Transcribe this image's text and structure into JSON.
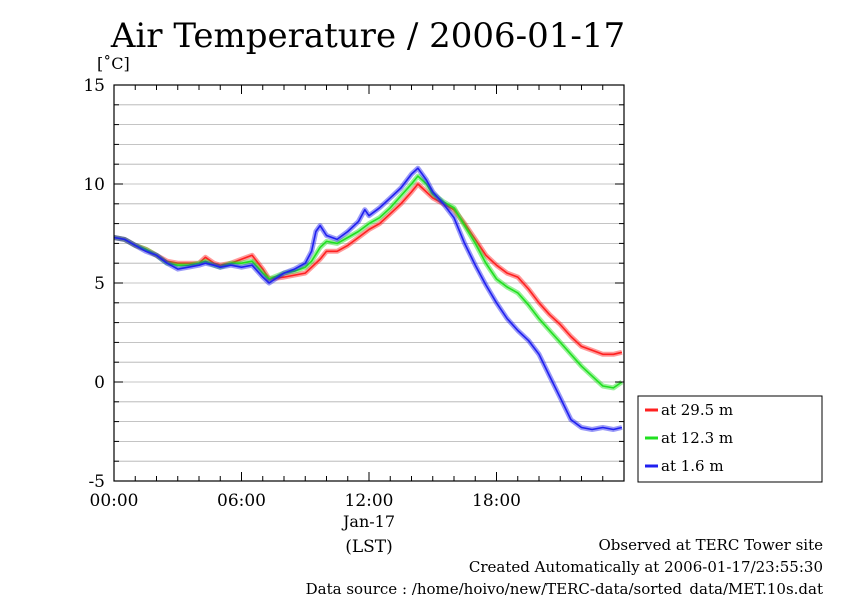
{
  "chart_data": {
    "type": "line",
    "title": "Air Temperature / 2006-01-17",
    "ylabel": "[˚C]",
    "xlabel": "(LST)",
    "date_label": "Jan-17",
    "ylim": [
      -5,
      15
    ],
    "xlim": [
      0,
      23.9
    ],
    "x_unit": "hour of day (LST)",
    "yticks": [
      {
        "value": 15,
        "label": "15"
      },
      {
        "value": 10,
        "label": "10"
      },
      {
        "value": 5,
        "label": "5"
      },
      {
        "value": 0,
        "label": "0"
      },
      {
        "value": -5,
        "label": "-5"
      }
    ],
    "xticks": [
      {
        "value": 0,
        "label": "00:00"
      },
      {
        "value": 6,
        "label": "06:00"
      },
      {
        "value": 12,
        "label": "12:00"
      },
      {
        "value": 18,
        "label": "18:00"
      }
    ],
    "grid": true,
    "legend_position": "right",
    "series": [
      {
        "name": "at 29.5 m",
        "color": "#ff2020",
        "points": [
          [
            0,
            7.3
          ],
          [
            0.5,
            7.2
          ],
          [
            1,
            6.9
          ],
          [
            1.5,
            6.7
          ],
          [
            2,
            6.4
          ],
          [
            2.5,
            6.1
          ],
          [
            3,
            6.0
          ],
          [
            3.5,
            6.0
          ],
          [
            4,
            6.0
          ],
          [
            4.3,
            6.3
          ],
          [
            4.7,
            6.0
          ],
          [
            5,
            5.9
          ],
          [
            5.5,
            6.0
          ],
          [
            6,
            6.2
          ],
          [
            6.5,
            6.4
          ],
          [
            7,
            5.7
          ],
          [
            7.3,
            5.2
          ],
          [
            8,
            5.3
          ],
          [
            8.5,
            5.4
          ],
          [
            9,
            5.5
          ],
          [
            9.3,
            5.8
          ],
          [
            9.7,
            6.2
          ],
          [
            10,
            6.6
          ],
          [
            10.5,
            6.6
          ],
          [
            11,
            6.9
          ],
          [
            11.5,
            7.3
          ],
          [
            12,
            7.7
          ],
          [
            12.5,
            8.0
          ],
          [
            13,
            8.5
          ],
          [
            13.5,
            9.0
          ],
          [
            14,
            9.6
          ],
          [
            14.3,
            10.0
          ],
          [
            14.7,
            9.6
          ],
          [
            15,
            9.3
          ],
          [
            15.5,
            9.0
          ],
          [
            16,
            8.7
          ],
          [
            16.5,
            8.0
          ],
          [
            17,
            7.2
          ],
          [
            17.5,
            6.4
          ],
          [
            18,
            5.9
          ],
          [
            18.5,
            5.5
          ],
          [
            19,
            5.3
          ],
          [
            19.5,
            4.7
          ],
          [
            20,
            4.0
          ],
          [
            20.5,
            3.4
          ],
          [
            21,
            2.9
          ],
          [
            21.5,
            2.3
          ],
          [
            22,
            1.8
          ],
          [
            22.5,
            1.6
          ],
          [
            23,
            1.4
          ],
          [
            23.5,
            1.4
          ],
          [
            23.9,
            1.5
          ]
        ]
      },
      {
        "name": "at 12.3 m",
        "color": "#20e020",
        "points": [
          [
            0,
            7.3
          ],
          [
            0.5,
            7.2
          ],
          [
            1,
            6.9
          ],
          [
            1.5,
            6.7
          ],
          [
            2,
            6.4
          ],
          [
            2.5,
            6.0
          ],
          [
            3,
            5.9
          ],
          [
            3.5,
            5.9
          ],
          [
            4,
            6.0
          ],
          [
            4.3,
            6.1
          ],
          [
            4.7,
            5.9
          ],
          [
            5,
            5.8
          ],
          [
            5.5,
            6.0
          ],
          [
            6,
            6.0
          ],
          [
            6.5,
            6.1
          ],
          [
            7,
            5.5
          ],
          [
            7.3,
            5.2
          ],
          [
            8,
            5.5
          ],
          [
            8.5,
            5.6
          ],
          [
            9,
            5.8
          ],
          [
            9.3,
            6.1
          ],
          [
            9.7,
            6.8
          ],
          [
            10,
            7.1
          ],
          [
            10.5,
            7.0
          ],
          [
            11,
            7.3
          ],
          [
            11.5,
            7.6
          ],
          [
            12,
            8.0
          ],
          [
            12.5,
            8.3
          ],
          [
            13,
            8.8
          ],
          [
            13.5,
            9.4
          ],
          [
            14,
            10.0
          ],
          [
            14.3,
            10.4
          ],
          [
            14.7,
            10.0
          ],
          [
            15,
            9.5
          ],
          [
            15.5,
            9.1
          ],
          [
            16,
            8.8
          ],
          [
            16.5,
            7.9
          ],
          [
            17,
            7.0
          ],
          [
            17.5,
            6.0
          ],
          [
            18,
            5.2
          ],
          [
            18.5,
            4.8
          ],
          [
            19,
            4.5
          ],
          [
            19.5,
            3.9
          ],
          [
            20,
            3.2
          ],
          [
            20.5,
            2.6
          ],
          [
            21,
            2.0
          ],
          [
            21.5,
            1.4
          ],
          [
            22,
            0.8
          ],
          [
            22.5,
            0.3
          ],
          [
            23,
            -0.2
          ],
          [
            23.5,
            -0.3
          ],
          [
            23.9,
            0.0
          ]
        ]
      },
      {
        "name": "at 1.6 m",
        "color": "#2020f0",
        "points": [
          [
            0,
            7.3
          ],
          [
            0.5,
            7.2
          ],
          [
            1,
            6.9
          ],
          [
            1.5,
            6.6
          ],
          [
            2,
            6.4
          ],
          [
            2.5,
            6.0
          ],
          [
            3,
            5.7
          ],
          [
            3.5,
            5.8
          ],
          [
            4,
            5.9
          ],
          [
            4.3,
            6.0
          ],
          [
            4.7,
            5.9
          ],
          [
            5,
            5.8
          ],
          [
            5.5,
            5.9
          ],
          [
            6,
            5.8
          ],
          [
            6.5,
            5.9
          ],
          [
            7,
            5.3
          ],
          [
            7.3,
            5.0
          ],
          [
            8,
            5.5
          ],
          [
            8.5,
            5.7
          ],
          [
            9,
            6.0
          ],
          [
            9.3,
            6.6
          ],
          [
            9.5,
            7.6
          ],
          [
            9.7,
            7.9
          ],
          [
            10,
            7.4
          ],
          [
            10.5,
            7.2
          ],
          [
            11,
            7.6
          ],
          [
            11.5,
            8.1
          ],
          [
            11.8,
            8.7
          ],
          [
            12,
            8.4
          ],
          [
            12.5,
            8.8
          ],
          [
            13,
            9.3
          ],
          [
            13.5,
            9.8
          ],
          [
            14,
            10.5
          ],
          [
            14.3,
            10.8
          ],
          [
            14.7,
            10.2
          ],
          [
            15,
            9.6
          ],
          [
            15.5,
            9.0
          ],
          [
            16,
            8.3
          ],
          [
            16.5,
            7.0
          ],
          [
            17,
            5.9
          ],
          [
            17.5,
            4.9
          ],
          [
            18,
            4.0
          ],
          [
            18.5,
            3.2
          ],
          [
            19,
            2.6
          ],
          [
            19.5,
            2.1
          ],
          [
            20,
            1.4
          ],
          [
            20.5,
            0.3
          ],
          [
            21,
            -0.8
          ],
          [
            21.5,
            -1.9
          ],
          [
            22,
            -2.3
          ],
          [
            22.5,
            -2.4
          ],
          [
            23,
            -2.3
          ],
          [
            23.5,
            -2.4
          ],
          [
            23.9,
            -2.3
          ]
        ]
      }
    ]
  },
  "footer": {
    "line1": "Observed at TERC Tower site",
    "line2": "Created Automatically at 2006-01-17/23:55:30",
    "line3": "Data source : /home/hoivo/new/TERC-data/sorted_data/MET.10s.dat"
  }
}
